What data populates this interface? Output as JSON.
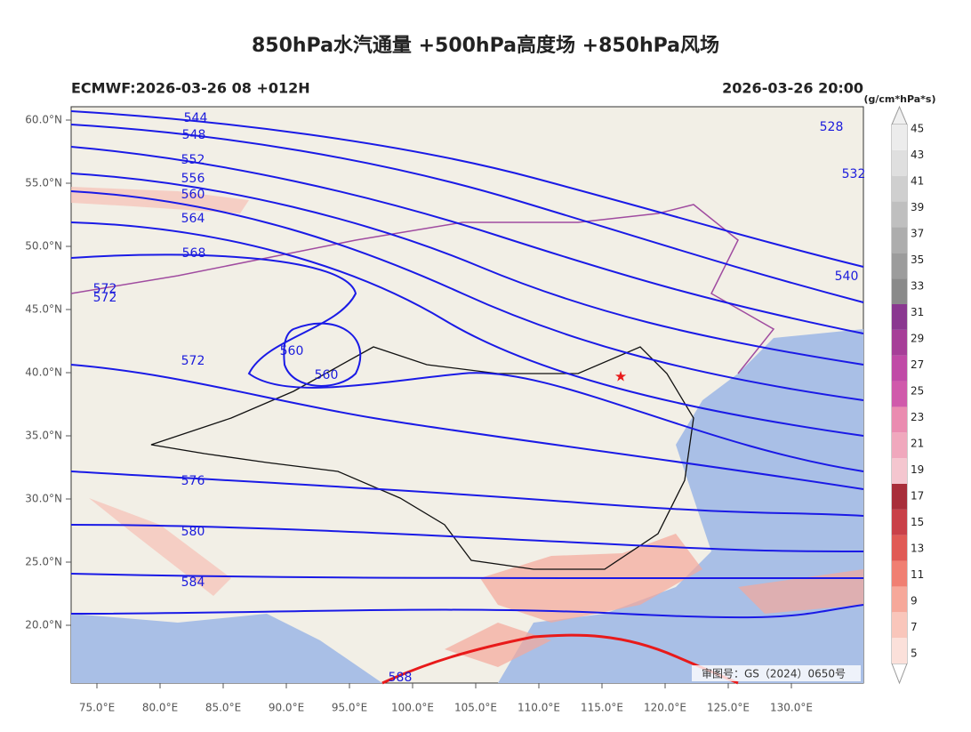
{
  "title": "850hPa水汽通量 +500hPa高度场 +850hPa风场",
  "model_run": "ECMWF:2026-03-26 08 +012H",
  "valid_time": "2026-03-26 20:00",
  "colorbar": {
    "unit": "(g/cm*hPa*s)",
    "levels": [
      5,
      7,
      9,
      11,
      13,
      15,
      17,
      19,
      21,
      23,
      25,
      27,
      29,
      31,
      33,
      35,
      37,
      39,
      41,
      43,
      45
    ]
  },
  "lat_labels": [
    "60.0°N",
    "55.0°N",
    "50.0°N",
    "45.0°N",
    "40.0°N",
    "35.0°N",
    "30.0°N",
    "25.0°N",
    "20.0°N"
  ],
  "lon_labels": [
    "75.0°E",
    "80.0°E",
    "85.0°E",
    "90.0°E",
    "95.0°E",
    "100.0°E",
    "105.0°E",
    "110.0°E",
    "115.0°E",
    "120.0°E",
    "125.0°E",
    "130.0°E"
  ],
  "contour_labels": [
    "544",
    "548",
    "552",
    "556",
    "560",
    "564",
    "568",
    "572",
    "572",
    "572",
    "576",
    "580",
    "584",
    "560",
    "560",
    "528",
    "532",
    "540",
    "588"
  ],
  "map_approval": "审图号：GS（2024）0650号"
}
